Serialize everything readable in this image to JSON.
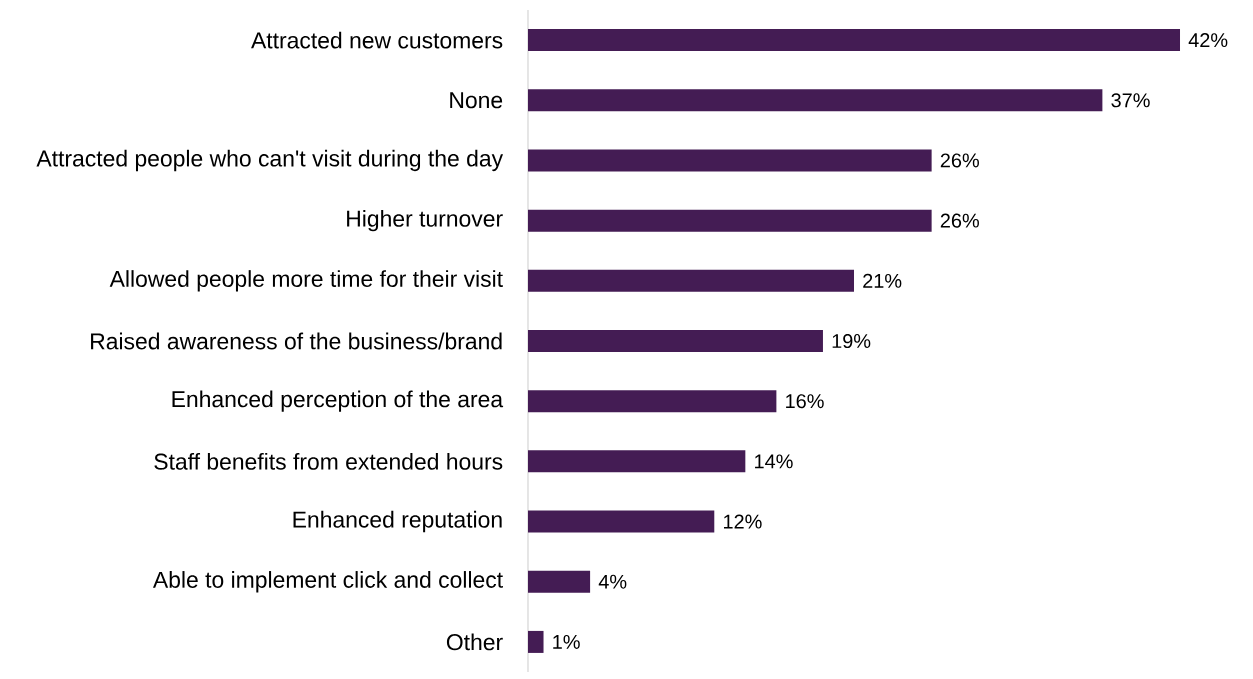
{
  "chart_data": {
    "type": "bar",
    "orientation": "horizontal",
    "categories": [
      "Attracted new customers",
      "None",
      "Attracted people who can't visit during the day",
      "Higher turnover",
      "Allowed people more time for their visit",
      "Raised awareness of the business/brand",
      "Enhanced perception of the area",
      "Staff benefits from extended hours",
      "Enhanced reputation",
      "Able to implement click and collect",
      "Other"
    ],
    "values": [
      42,
      37,
      26,
      26,
      21,
      19,
      16,
      14,
      12,
      4,
      1
    ],
    "value_labels": [
      "42%",
      "37%",
      "26%",
      "26%",
      "21%",
      "19%",
      "16%",
      "14%",
      "12%",
      "4%",
      "1%"
    ],
    "color": "#441c54"
  }
}
